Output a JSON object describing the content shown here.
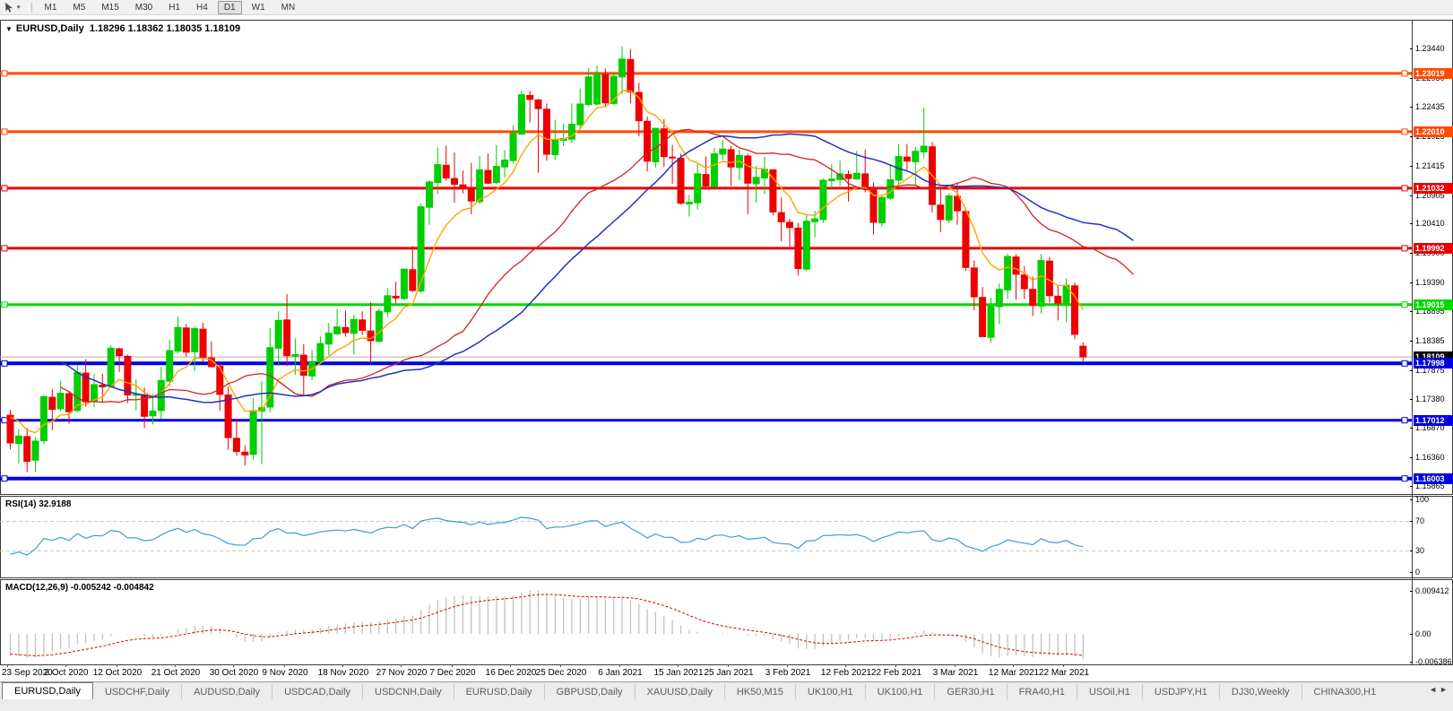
{
  "toolbar": {
    "cursor_icon": "cursor-arrow-icon",
    "dropdown_icon": "chevron-down-icon",
    "timeframes": [
      "M1",
      "M5",
      "M15",
      "M30",
      "H1",
      "H4",
      "D1",
      "W1",
      "MN"
    ],
    "active_timeframe": "D1"
  },
  "chart": {
    "title_symbol": "EURUSD,Daily",
    "ohlc_text": "1.18296 1.18362 1.18035 1.18109",
    "dropdown_marker": "▼",
    "price_axis_ticks": [
      "1.23440",
      "1.22930",
      "1.22435",
      "1.21925",
      "1.21415",
      "1.20905",
      "1.20410",
      "1.19900",
      "1.19390",
      "1.18895",
      "1.18385",
      "1.17875",
      "1.17380",
      "1.16870",
      "1.16360",
      "1.15865"
    ]
  },
  "rsi_panel": {
    "label": "RSI(14) 32.9188",
    "ticks": [
      {
        "text": "100",
        "v": 100
      },
      {
        "text": "70",
        "v": 70
      },
      {
        "text": "30",
        "v": 30
      },
      {
        "text": "0",
        "v": 0
      }
    ]
  },
  "macd_panel": {
    "label": "MACD(12,26,9) -0.005242 -0.004842",
    "ticks": [
      {
        "text": "0.009412",
        "v": 0.009412
      },
      {
        "text": "0.00",
        "v": 0
      },
      {
        "text": "-0.006386",
        "v": -0.006386
      }
    ]
  },
  "tabs": {
    "items": [
      "EURUSD,Daily",
      "USDCHF,Daily",
      "AUDUSD,Daily",
      "USDCAD,Daily",
      "USDCNH,Daily",
      "EURUSD,Daily",
      "GBPUSD,Daily",
      "XAUUSD,Daily",
      "HK50,M15",
      "UK100,H1",
      "UK100,H1",
      "GER30,H1",
      "FRA40,H1",
      "USOil,H1",
      "USDJPY,H1",
      "DJ30,Weekly",
      "CHINA300,H1"
    ],
    "active_index": 0,
    "scroll_left_icon": "◄",
    "scroll_right_icon": "►"
  },
  "chart_data": {
    "type": "candlestick",
    "symbol": "EURUSD",
    "timeframe": "Daily",
    "last_bar": {
      "open": 1.18296,
      "high": 1.18362,
      "low": 1.18035,
      "close": 1.18109
    },
    "price_range": {
      "top": 1.2395,
      "bottom": 1.1575
    },
    "colors": {
      "bull": "#00CE00",
      "bear": "#EE0000",
      "ma_fast": "#FFA500",
      "ma_mid": "#D22424",
      "ma_slow": "#2432C0",
      "rsi_line": "#3E9ADE",
      "macd_hist": "#BDBDBD",
      "macd_signal": "#E00000",
      "current_line": "#ADADAD",
      "level_dash": "#C4C4C4"
    },
    "levels": [
      {
        "label": "1.23019",
        "price": 1.23019,
        "color": "#FF4A00",
        "width": 3
      },
      {
        "label": "1.22010",
        "price": 1.2201,
        "color": "#FF4A00",
        "width": 3
      },
      {
        "label": "1.21032",
        "price": 1.21032,
        "color": "#EE0000",
        "width": 3
      },
      {
        "label": "1.19992",
        "price": 1.19992,
        "color": "#E60000",
        "width": 3
      },
      {
        "label": "1.19015",
        "price": 1.19015,
        "color": "#00D800",
        "width": 3
      },
      {
        "label": "1.17998",
        "price": 1.17998,
        "color": "#0000E0",
        "width": 4
      },
      {
        "label": "1.17012",
        "price": 1.17012,
        "color": "#0000E0",
        "width": 3
      },
      {
        "label": "1.16003",
        "price": 1.16003,
        "color": "#0000E0",
        "width": 4
      }
    ],
    "current_price": {
      "label": "1.18109",
      "price": 1.18109,
      "box_bg": "#000000"
    },
    "moving_averages": [
      {
        "name": "fast",
        "period": 8,
        "method": "ema",
        "shift": 0
      },
      {
        "name": "mid",
        "period": 21,
        "method": "ema",
        "shift": 6
      },
      {
        "name": "slow",
        "period": 30,
        "method": "sma",
        "shift": 6
      }
    ],
    "rsi": {
      "period": 14,
      "last_value": 32.9188,
      "levels": [
        70,
        30
      ],
      "scale": [
        0,
        100
      ]
    },
    "macd": {
      "fast": 12,
      "slow": 26,
      "signal": 9,
      "last_main": -0.005242,
      "last_signal": -0.004842,
      "scale_top": 0.009412,
      "scale_bottom": -0.006386
    },
    "x_labels": [
      {
        "text": "23 Sep 2020",
        "i": 0
      },
      {
        "text": "2 Oct 2020",
        "i": 7
      },
      {
        "text": "12 Oct 2020",
        "i": 13
      },
      {
        "text": "21 Oct 2020",
        "i": 20
      },
      {
        "text": "30 Oct 2020",
        "i": 27
      },
      {
        "text": "9 Nov 2020",
        "i": 33
      },
      {
        "text": "18 Nov 2020",
        "i": 40
      },
      {
        "text": "27 Nov 2020",
        "i": 47
      },
      {
        "text": "7 Dec 2020",
        "i": 53
      },
      {
        "text": "16 Dec 2020",
        "i": 60
      },
      {
        "text": "25 Dec 2020",
        "i": 66
      },
      {
        "text": "6 Jan 2021",
        "i": 73
      },
      {
        "text": "15 Jan 2021",
        "i": 80
      },
      {
        "text": "25 Jan 2021",
        "i": 86
      },
      {
        "text": "3 Feb 2021",
        "i": 93
      },
      {
        "text": "12 Feb 2021",
        "i": 100
      },
      {
        "text": "22 Feb 2021",
        "i": 106
      },
      {
        "text": "3 Mar 2021",
        "i": 113
      },
      {
        "text": "12 Mar 2021",
        "i": 120
      },
      {
        "text": "22 Mar 2021",
        "i": 126
      }
    ],
    "warmup_closes": [
      1.1935,
      1.1928,
      1.194,
      1.1915,
      1.19,
      1.1908,
      1.1888,
      1.187,
      1.1878,
      1.1855,
      1.184,
      1.1848,
      1.1825,
      1.1812,
      1.182,
      1.18,
      1.1788,
      1.1795,
      1.1775,
      1.1762,
      1.177,
      1.175,
      1.174,
      1.1748,
      1.173,
      1.1718,
      1.1725,
      1.1708,
      1.1698,
      1.169
    ],
    "candles": [
      [
        1.171,
        1.1719,
        1.1651,
        1.1662
      ],
      [
        1.1661,
        1.1686,
        1.1626,
        1.1674
      ],
      [
        1.1673,
        1.1688,
        1.1611,
        1.163
      ],
      [
        1.1632,
        1.1672,
        1.1612,
        1.1665
      ],
      [
        1.1666,
        1.1745,
        1.166,
        1.1742
      ],
      [
        1.1741,
        1.1755,
        1.1684,
        1.172
      ],
      [
        1.1721,
        1.177,
        1.1717,
        1.1748
      ],
      [
        1.1747,
        1.1752,
        1.1695,
        1.1716
      ],
      [
        1.1718,
        1.1798,
        1.1715,
        1.1784
      ],
      [
        1.1783,
        1.1807,
        1.1725,
        1.1733
      ],
      [
        1.1734,
        1.1781,
        1.1724,
        1.1763
      ],
      [
        1.1762,
        1.1782,
        1.1733,
        1.1759
      ],
      [
        1.176,
        1.1831,
        1.1758,
        1.1826
      ],
      [
        1.1825,
        1.1827,
        1.1785,
        1.1813
      ],
      [
        1.1812,
        1.1815,
        1.1731,
        1.1745
      ],
      [
        1.1746,
        1.1772,
        1.1718,
        1.1746
      ],
      [
        1.1745,
        1.1758,
        1.1688,
        1.1708
      ],
      [
        1.1709,
        1.1747,
        1.1694,
        1.1717
      ],
      [
        1.1718,
        1.1794,
        1.1704,
        1.177
      ],
      [
        1.1769,
        1.184,
        1.176,
        1.1822
      ],
      [
        1.1821,
        1.1881,
        1.1817,
        1.1862
      ],
      [
        1.1861,
        1.1868,
        1.1811,
        1.1819
      ],
      [
        1.182,
        1.1864,
        1.1786,
        1.186
      ],
      [
        1.1859,
        1.187,
        1.1803,
        1.181
      ],
      [
        1.1809,
        1.1838,
        1.1793,
        1.1794
      ],
      [
        1.1795,
        1.18,
        1.1718,
        1.1746
      ],
      [
        1.1745,
        1.1759,
        1.165,
        1.1671
      ],
      [
        1.167,
        1.1704,
        1.164,
        1.1647
      ],
      [
        1.1646,
        1.1658,
        1.1623,
        1.1641
      ],
      [
        1.1642,
        1.174,
        1.1633,
        1.1718
      ],
      [
        1.1717,
        1.1769,
        1.1625,
        1.1723
      ],
      [
        1.1724,
        1.1861,
        1.1715,
        1.1827
      ],
      [
        1.1826,
        1.189,
        1.1795,
        1.1874
      ],
      [
        1.1875,
        1.192,
        1.1795,
        1.1813
      ],
      [
        1.1812,
        1.1843,
        1.178,
        1.1815
      ],
      [
        1.1814,
        1.1833,
        1.1745,
        1.1779
      ],
      [
        1.1778,
        1.1823,
        1.1771,
        1.1803
      ],
      [
        1.1802,
        1.1847,
        1.1799,
        1.1834
      ],
      [
        1.1833,
        1.1869,
        1.1814,
        1.1852
      ],
      [
        1.1851,
        1.1894,
        1.1849,
        1.1863
      ],
      [
        1.1862,
        1.1891,
        1.1846,
        1.1853
      ],
      [
        1.1852,
        1.1884,
        1.1815,
        1.1876
      ],
      [
        1.1875,
        1.189,
        1.1849,
        1.1857
      ],
      [
        1.1856,
        1.1906,
        1.18,
        1.1839
      ],
      [
        1.1838,
        1.1895,
        1.1835,
        1.189
      ],
      [
        1.1889,
        1.193,
        1.188,
        1.1917
      ],
      [
        1.1916,
        1.1941,
        1.1904,
        1.1913
      ],
      [
        1.1912,
        1.1963,
        1.1909,
        1.1963
      ],
      [
        1.1962,
        1.2003,
        1.1923,
        1.1926
      ],
      [
        1.1925,
        1.2077,
        1.1922,
        1.2071
      ],
      [
        1.207,
        1.2117,
        1.204,
        1.2114
      ],
      [
        1.2113,
        1.2174,
        1.2093,
        1.2144
      ],
      [
        1.2143,
        1.2177,
        1.2116,
        1.2121
      ],
      [
        1.212,
        1.2165,
        1.2078,
        1.211
      ],
      [
        1.2109,
        1.2134,
        1.2094,
        1.2105
      ],
      [
        1.2104,
        1.2147,
        1.2058,
        1.2081
      ],
      [
        1.208,
        1.2159,
        1.2076,
        1.2135
      ],
      [
        1.2134,
        1.2163,
        1.211,
        1.2112
      ],
      [
        1.2113,
        1.2178,
        1.211,
        1.2141
      ],
      [
        1.214,
        1.2169,
        1.2122,
        1.2152
      ],
      [
        1.2151,
        1.2212,
        1.2146,
        1.2198
      ],
      [
        1.2197,
        1.2273,
        1.2195,
        1.2265
      ],
      [
        1.2264,
        1.2272,
        1.2217,
        1.2257
      ],
      [
        1.2256,
        1.2258,
        1.213,
        1.2241
      ],
      [
        1.224,
        1.225,
        1.2151,
        1.2162
      ],
      [
        1.2161,
        1.2222,
        1.2152,
        1.2187
      ],
      [
        1.2186,
        1.2215,
        1.2176,
        1.2189
      ],
      [
        1.2188,
        1.225,
        1.2181,
        1.2214
      ],
      [
        1.2213,
        1.2276,
        1.2208,
        1.2249
      ],
      [
        1.2248,
        1.2311,
        1.2245,
        1.2296
      ],
      [
        1.2249,
        1.2316,
        1.2246,
        1.2301
      ],
      [
        1.23,
        1.231,
        1.2245,
        1.2251
      ],
      [
        1.225,
        1.2304,
        1.2247,
        1.2297
      ],
      [
        1.2296,
        1.2349,
        1.2266,
        1.2327
      ],
      [
        1.2326,
        1.2344,
        1.225,
        1.227
      ],
      [
        1.2269,
        1.2286,
        1.2193,
        1.222
      ],
      [
        1.2219,
        1.2227,
        1.2132,
        1.215
      ],
      [
        1.2149,
        1.2208,
        1.2139,
        1.2207
      ],
      [
        1.2206,
        1.2223,
        1.214,
        1.2158
      ],
      [
        1.2157,
        1.2178,
        1.2111,
        1.2156
      ],
      [
        1.2155,
        1.2163,
        1.2075,
        1.2077
      ],
      [
        1.2076,
        1.2092,
        1.2054,
        1.2079
      ],
      [
        1.2078,
        1.2145,
        1.2066,
        1.2128
      ],
      [
        1.2127,
        1.2158,
        1.2101,
        1.2107
      ],
      [
        1.2106,
        1.2173,
        1.2105,
        1.2163
      ],
      [
        1.2162,
        1.2187,
        1.2152,
        1.2171
      ],
      [
        1.217,
        1.2176,
        1.2107,
        1.214
      ],
      [
        1.2139,
        1.217,
        1.2117,
        1.216
      ],
      [
        1.2159,
        1.2163,
        1.2058,
        1.2112
      ],
      [
        1.2111,
        1.2142,
        1.2078,
        1.2122
      ],
      [
        1.2121,
        1.2158,
        1.2093,
        1.2136
      ],
      [
        1.2135,
        1.2136,
        1.2056,
        1.2062
      ],
      [
        1.2061,
        1.2087,
        1.2011,
        1.2045
      ],
      [
        1.2044,
        1.205,
        1.2002,
        1.2035
      ],
      [
        1.2034,
        1.2043,
        1.1952,
        1.1964
      ],
      [
        1.1963,
        1.2058,
        1.1959,
        1.2046
      ],
      [
        1.2045,
        1.2064,
        1.2018,
        1.205
      ],
      [
        1.2049,
        1.212,
        1.2043,
        1.2117
      ],
      [
        1.2116,
        1.2144,
        1.2102,
        1.2119
      ],
      [
        1.2118,
        1.2151,
        1.2107,
        1.2128
      ],
      [
        1.2127,
        1.2134,
        1.208,
        1.212
      ],
      [
        1.2119,
        1.2168,
        1.2118,
        1.2129
      ],
      [
        1.2128,
        1.217,
        1.2096,
        1.2104
      ],
      [
        1.2103,
        1.2113,
        1.2023,
        1.2044
      ],
      [
        1.2043,
        1.2089,
        1.2036,
        1.2087
      ],
      [
        1.2086,
        1.2145,
        1.2082,
        1.2118
      ],
      [
        1.2117,
        1.218,
        1.2109,
        1.2158
      ],
      [
        1.2157,
        1.218,
        1.2135,
        1.215
      ],
      [
        1.2149,
        1.2175,
        1.2109,
        1.2167
      ],
      [
        1.2166,
        1.2243,
        1.2156,
        1.2176
      ],
      [
        1.2175,
        1.2183,
        1.2061,
        1.2075
      ],
      [
        1.2074,
        1.2101,
        1.2027,
        1.2049
      ],
      [
        1.2048,
        1.2094,
        1.2043,
        1.209
      ],
      [
        1.2089,
        1.2113,
        1.204,
        1.2064
      ],
      [
        1.2063,
        1.2069,
        1.196,
        1.1966
      ],
      [
        1.1965,
        1.1978,
        1.1892,
        1.1915
      ],
      [
        1.1914,
        1.1932,
        1.1845,
        1.1846
      ],
      [
        1.1845,
        1.1914,
        1.1836,
        1.1899
      ],
      [
        1.1898,
        1.1938,
        1.1868,
        1.1928
      ],
      [
        1.1927,
        1.199,
        1.1911,
        1.1985
      ],
      [
        1.1984,
        1.1989,
        1.191,
        1.1954
      ],
      [
        1.1953,
        1.1968,
        1.1911,
        1.1929
      ],
      [
        1.1928,
        1.195,
        1.1882,
        1.19
      ],
      [
        1.1899,
        1.1989,
        1.1886,
        1.1978
      ],
      [
        1.1977,
        1.1984,
        1.1905,
        1.1917
      ],
      [
        1.1916,
        1.1936,
        1.1874,
        1.1904
      ],
      [
        1.1903,
        1.1947,
        1.1871,
        1.1935
      ],
      [
        1.1934,
        1.194,
        1.1842,
        1.185
      ],
      [
        1.18296,
        1.18362,
        1.18035,
        1.18109
      ]
    ]
  }
}
